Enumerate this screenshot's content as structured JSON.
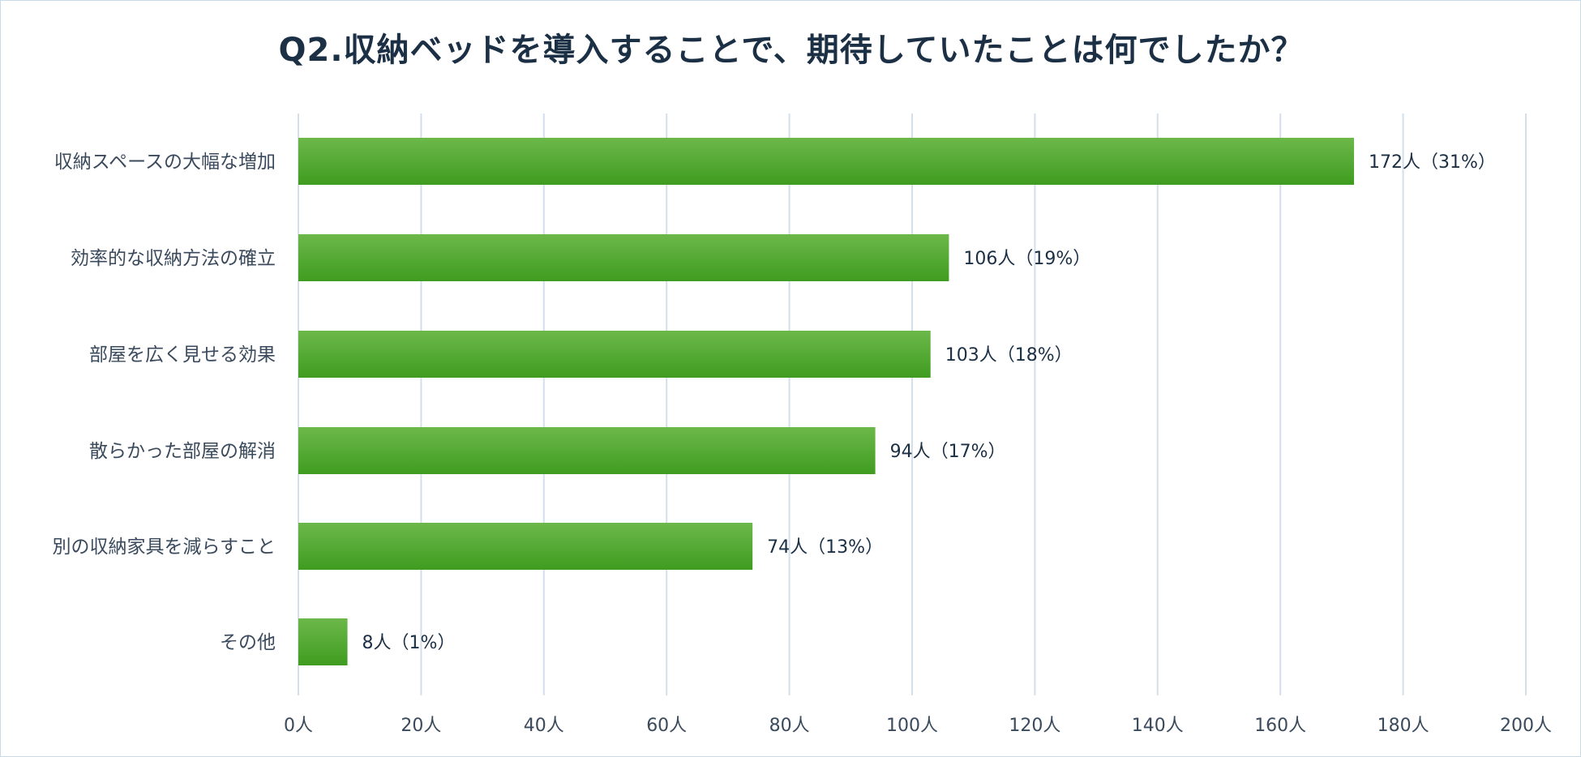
{
  "chart_data": {
    "type": "bar",
    "orientation": "horizontal",
    "title": "Q2.収納ベッドを導入することで、期待していたことは何でしたか？",
    "categories": [
      "収納スペースの大幅な増加",
      "効率的な収納方法の確立",
      "部屋を広く見せる効果",
      "散らかった部屋の解消",
      "別の収納家具を減らすこと",
      "その他"
    ],
    "values": [
      172,
      106,
      103,
      94,
      74,
      8
    ],
    "data_labels": [
      "172人（31%）",
      "106人（19%）",
      "103人（18%）",
      "94人（17%）",
      "74人（13%）",
      "8人（1%）"
    ],
    "x_ticks": [
      "0人",
      "20人",
      "40人",
      "60人",
      "80人",
      "100人",
      "120人",
      "140人",
      "160人",
      "180人",
      "200人"
    ],
    "xlim": [
      0,
      200
    ],
    "grid": "vertical",
    "legend": "none",
    "colors": {
      "bar_top": "#6cb84a",
      "bar_bottom": "#3f9c20",
      "grid": "#d3e0ec",
      "title": "#1b2f45"
    }
  }
}
